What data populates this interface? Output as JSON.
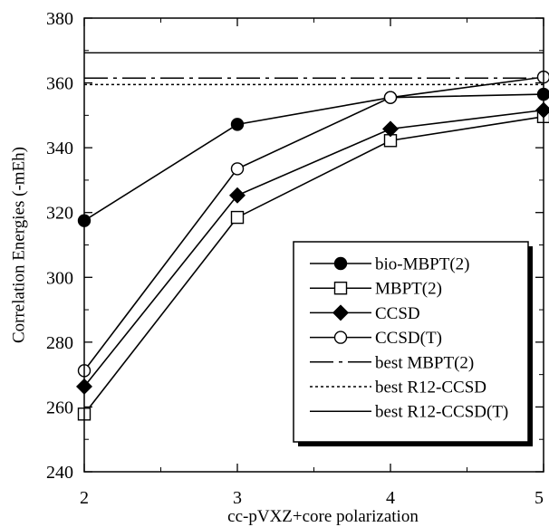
{
  "chart_data": {
    "type": "line",
    "title": "",
    "xlabel": "cc-pVXZ+core polarization",
    "ylabel": "Correlation Energies (-mEh)",
    "x": [
      2,
      3,
      4,
      5
    ],
    "xlim": [
      2,
      5
    ],
    "ylim": [
      240,
      380
    ],
    "yticks": [
      240,
      260,
      280,
      300,
      320,
      340,
      360,
      380
    ],
    "xticks": [
      2,
      3,
      4,
      5
    ],
    "grid": false,
    "legend_position": "lower-right",
    "series": [
      {
        "name": "bio-MBPT(2)",
        "values": [
          317.5,
          347.2,
          355.5,
          356.5
        ],
        "marker": "filled-circle",
        "line": "solid"
      },
      {
        "name": "MBPT(2)",
        "values": [
          257.8,
          318.5,
          342.2,
          349.6
        ],
        "marker": "open-square",
        "line": "solid"
      },
      {
        "name": "CCSD",
        "values": [
          266.3,
          325.3,
          345.8,
          351.6
        ],
        "marker": "filled-diamond",
        "line": "solid"
      },
      {
        "name": "CCSD(T)",
        "values": [
          271.2,
          333.5,
          355.5,
          361.8
        ],
        "marker": "open-circle",
        "line": "solid"
      }
    ],
    "reference_lines": [
      {
        "name": "best MBPT(2)",
        "value": 361.5,
        "line": "dashdot"
      },
      {
        "name": "best R12-CCSD",
        "value": 359.5,
        "line": "dotted"
      },
      {
        "name": "best R12-CCSD(T)",
        "value": 369.3,
        "line": "solid"
      }
    ]
  }
}
